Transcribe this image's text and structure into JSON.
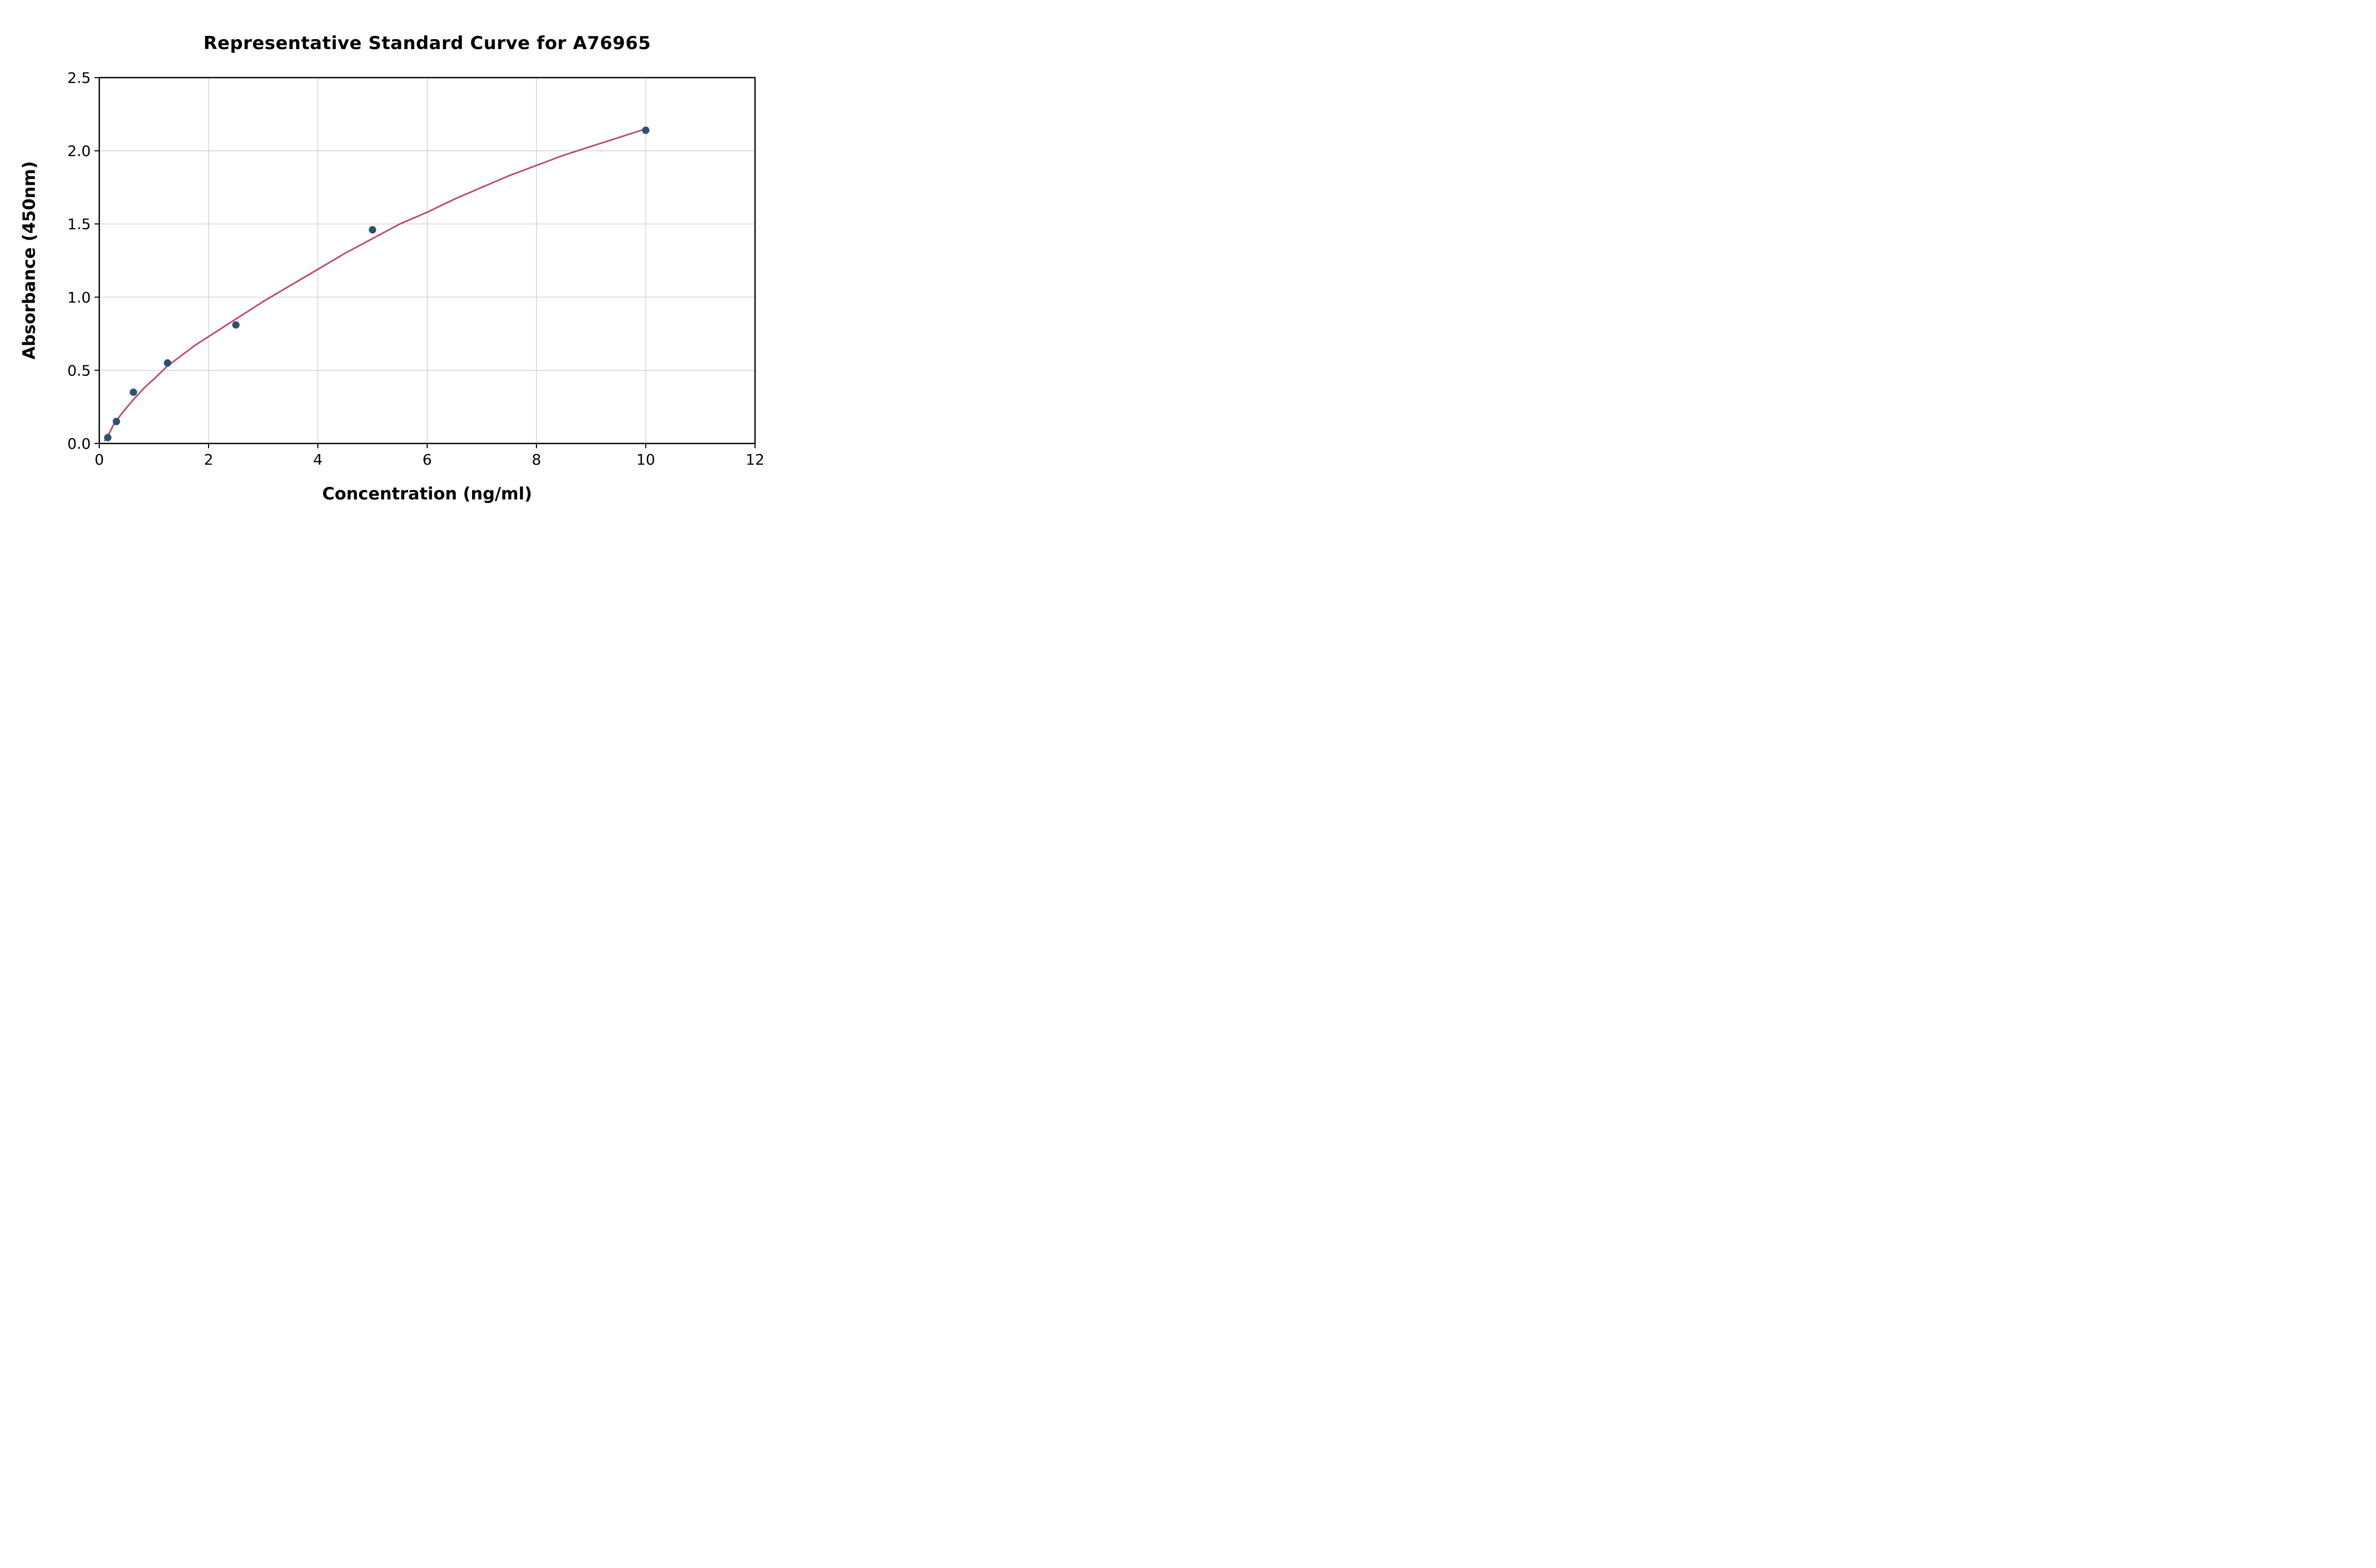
{
  "chart_data": {
    "type": "scatter",
    "title": "Representative Standard Curve for A76965",
    "xlabel": "Concentration (ng/ml)",
    "ylabel": "Absorbance (450nm)",
    "xlim": [
      0,
      12
    ],
    "ylim": [
      0,
      2.5
    ],
    "grid": true,
    "legend_position": "none",
    "xticks": {
      "values": [
        0,
        2,
        4,
        6,
        8,
        10,
        12
      ],
      "labels": [
        "0",
        "2",
        "4",
        "6",
        "8",
        "10",
        "12"
      ]
    },
    "yticks": {
      "values": [
        0,
        0.5,
        1.0,
        1.5,
        2.0,
        2.5
      ],
      "labels": [
        "0.0",
        "0.5",
        "1.0",
        "1.5",
        "2.0",
        "2.5"
      ]
    },
    "points": [
      {
        "x": 0.156,
        "y": 0.04
      },
      {
        "x": 0.313,
        "y": 0.15
      },
      {
        "x": 0.625,
        "y": 0.35
      },
      {
        "x": 1.25,
        "y": 0.55
      },
      {
        "x": 2.5,
        "y": 0.81
      },
      {
        "x": 5,
        "y": 1.46
      },
      {
        "x": 10,
        "y": 2.14
      }
    ],
    "fit_curve": {
      "samples": [
        [
          0.1,
          0.02
        ],
        [
          0.156,
          0.05
        ],
        [
          0.25,
          0.12
        ],
        [
          0.4,
          0.2
        ],
        [
          0.625,
          0.3
        ],
        [
          0.85,
          0.39
        ],
        [
          1.0,
          0.44
        ],
        [
          1.25,
          0.53
        ],
        [
          1.5,
          0.6
        ],
        [
          1.75,
          0.67
        ],
        [
          2.0,
          0.73
        ],
        [
          2.5,
          0.85
        ],
        [
          3.0,
          0.97
        ],
        [
          3.5,
          1.08
        ],
        [
          4.0,
          1.19
        ],
        [
          4.5,
          1.3
        ],
        [
          5.0,
          1.4
        ],
        [
          5.5,
          1.5
        ],
        [
          6.0,
          1.58
        ],
        [
          6.5,
          1.67
        ],
        [
          7.0,
          1.75
        ],
        [
          7.5,
          1.83
        ],
        [
          8.0,
          1.9
        ],
        [
          8.5,
          1.97
        ],
        [
          9.0,
          2.03
        ],
        [
          9.5,
          2.09
        ],
        [
          10.0,
          2.15
        ]
      ]
    },
    "colors": {
      "point": "#2f4f6f",
      "curve": "#bd4a6e",
      "grid": "#c9c9c9",
      "spine": "#000000",
      "background": "#ffffff",
      "text": "#000000"
    }
  }
}
